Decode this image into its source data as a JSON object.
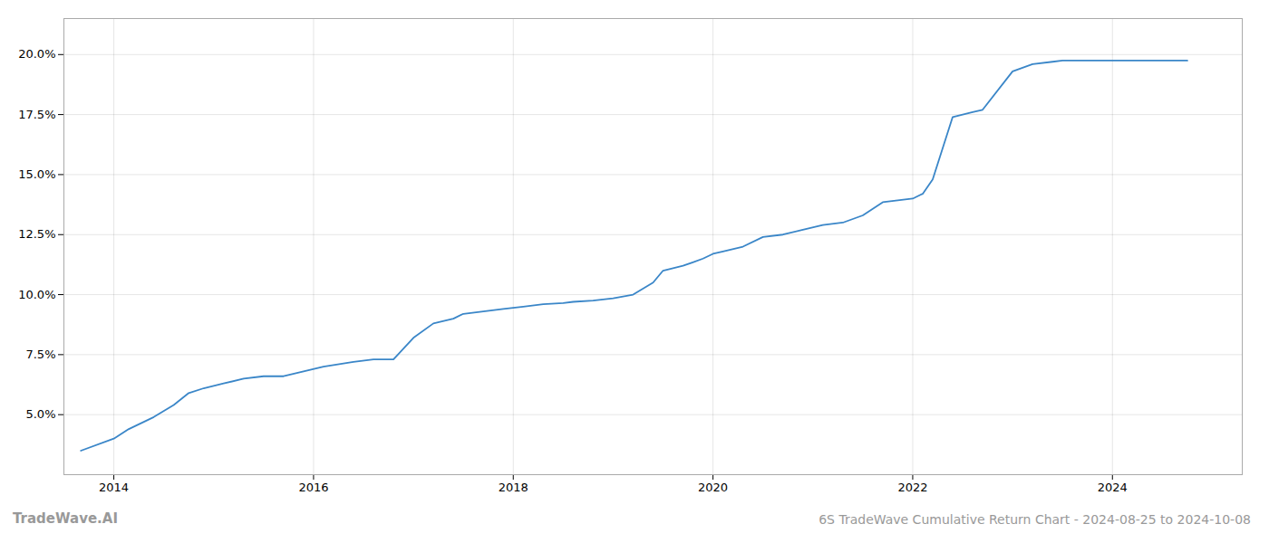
{
  "chart_data": {
    "type": "line",
    "title": "6S TradeWave Cumulative Return Chart - 2024-08-25 to 2024-10-08",
    "annotations": [
      "TradeWave.AI"
    ],
    "x": [
      2013.67,
      2014.0,
      2014.15,
      2014.4,
      2014.6,
      2014.75,
      2014.9,
      2015.1,
      2015.3,
      2015.5,
      2015.7,
      2015.9,
      2016.1,
      2016.4,
      2016.6,
      2016.8,
      2017.0,
      2017.2,
      2017.4,
      2017.5,
      2017.7,
      2017.9,
      2018.1,
      2018.3,
      2018.5,
      2018.6,
      2018.8,
      2019.0,
      2019.2,
      2019.4,
      2019.5,
      2019.7,
      2019.9,
      2020.0,
      2020.1,
      2020.3,
      2020.5,
      2020.7,
      2020.9,
      2021.1,
      2021.3,
      2021.5,
      2021.7,
      2022.0,
      2022.1,
      2022.2,
      2022.4,
      2022.6,
      2022.7,
      2023.0,
      2023.2,
      2023.4,
      2023.5,
      2023.7,
      2023.9,
      2024.0,
      2024.2,
      2024.5,
      2024.75
    ],
    "values": [
      3.5,
      4.0,
      4.4,
      4.9,
      5.4,
      5.9,
      6.1,
      6.3,
      6.5,
      6.6,
      6.6,
      6.8,
      7.0,
      7.2,
      7.3,
      7.3,
      8.2,
      8.8,
      9.0,
      9.2,
      9.3,
      9.4,
      9.5,
      9.6,
      9.65,
      9.7,
      9.75,
      9.85,
      10.0,
      10.5,
      11.0,
      11.2,
      11.5,
      11.7,
      11.8,
      12.0,
      12.4,
      12.5,
      12.7,
      12.9,
      13.0,
      13.3,
      13.85,
      14.0,
      14.2,
      14.8,
      17.4,
      17.6,
      17.7,
      19.3,
      19.6,
      19.7,
      19.75,
      19.75,
      19.75,
      19.75,
      19.75,
      19.75,
      19.75
    ],
    "color": "#3a86c8",
    "xlim": [
      2013.5,
      2025.3
    ],
    "ylim": [
      2.5,
      21.5
    ],
    "xticks": [
      2014,
      2016,
      2018,
      2020,
      2022,
      2024
    ],
    "yticks": [
      {
        "value": 5.0,
        "label": "5.0%"
      },
      {
        "value": 7.5,
        "label": "7.5%"
      },
      {
        "value": 10.0,
        "label": "10.0%"
      },
      {
        "value": 12.5,
        "label": "12.5%"
      },
      {
        "value": 15.0,
        "label": "15.0%"
      },
      {
        "value": 17.5,
        "label": "17.5%"
      },
      {
        "value": 20.0,
        "label": "20.0%"
      }
    ],
    "grid": true
  }
}
